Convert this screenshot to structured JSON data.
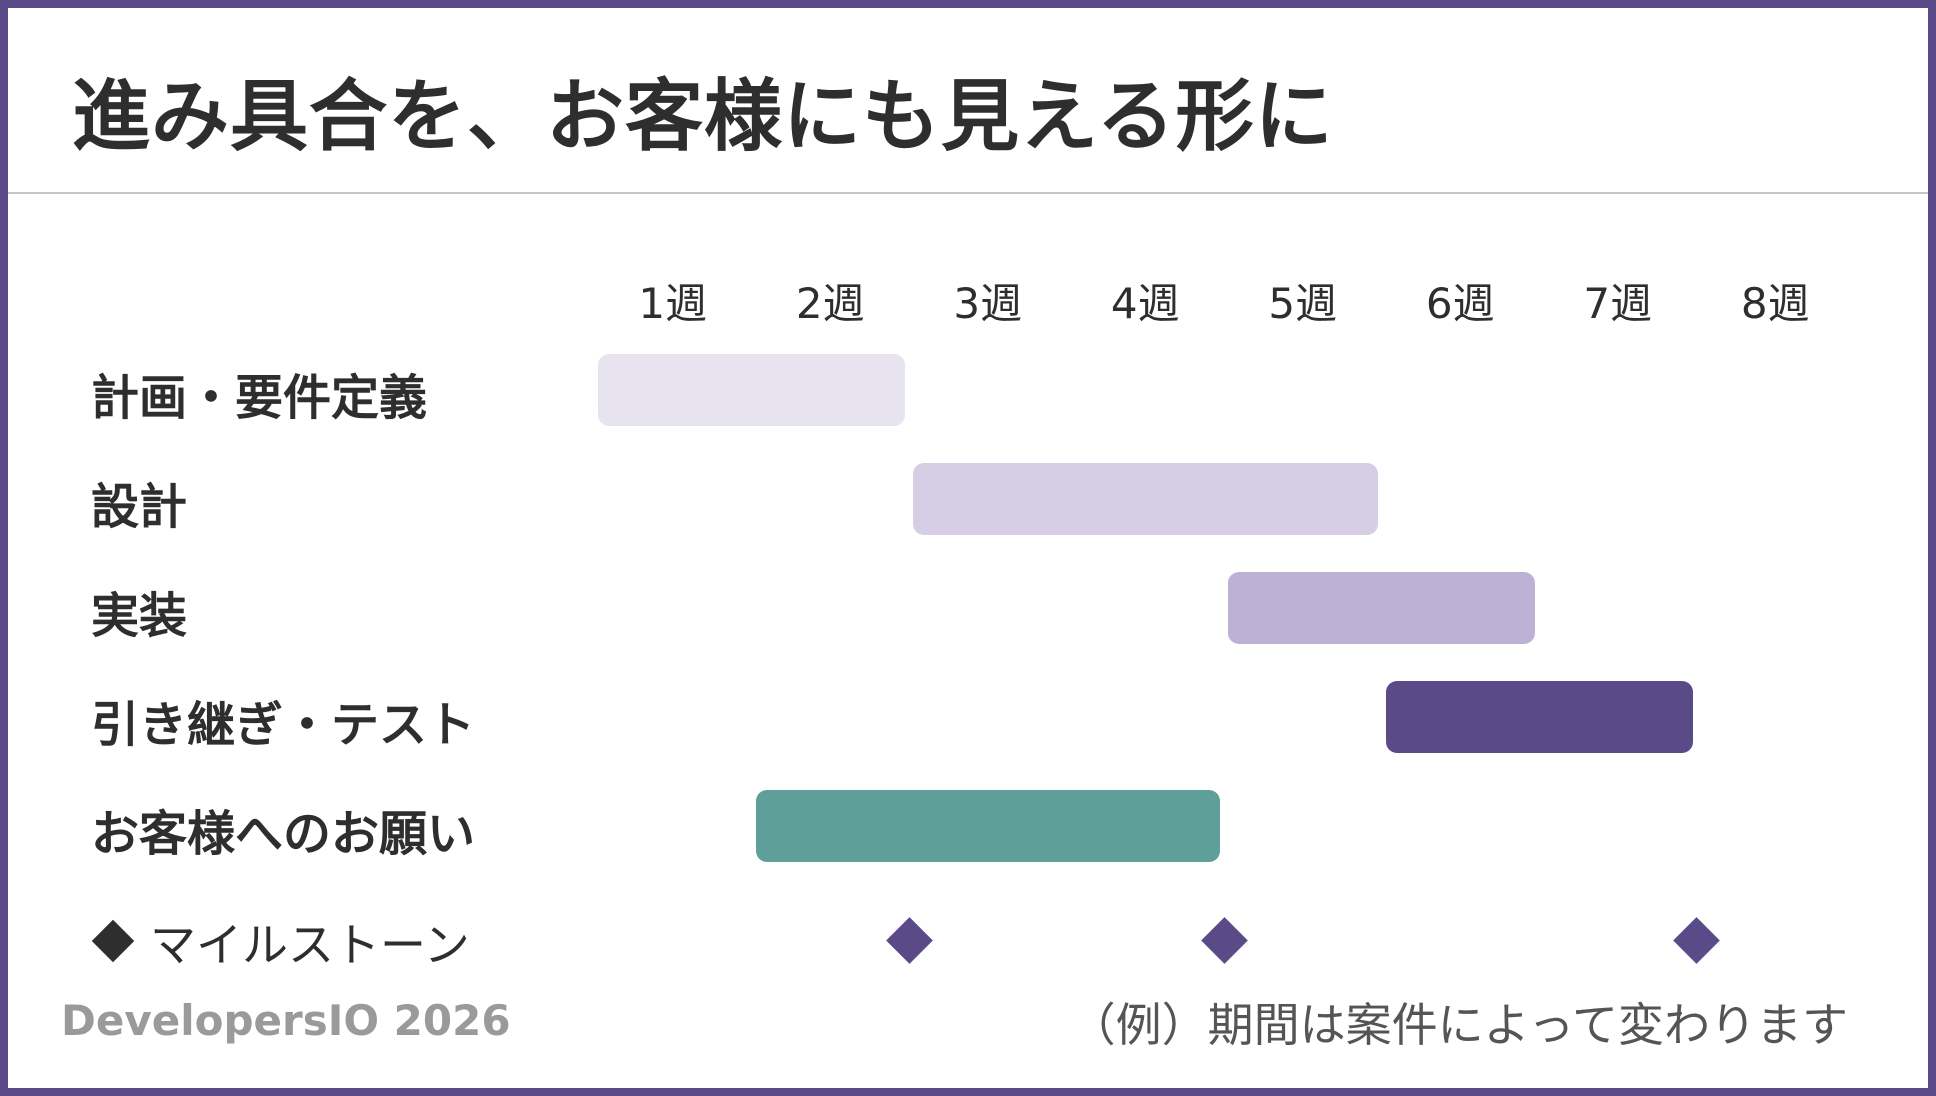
{
  "title": "進み具合を、お客様にも見える形に",
  "chart_data": {
    "type": "gantt",
    "weeks": [
      "1週",
      "2週",
      "3週",
      "4週",
      "5週",
      "6週",
      "7週",
      "8週"
    ],
    "tasks": [
      {
        "name": "計画・要件定義",
        "start_week": 1,
        "end_week": 2,
        "color": "#e7e4ef"
      },
      {
        "name": "設計",
        "start_week": 3,
        "end_week": 5,
        "color": "#d6cee5"
      },
      {
        "name": "実装",
        "start_week": 5,
        "end_week": 6,
        "color": "#bdb2d5"
      },
      {
        "name": "引き継ぎ・テスト",
        "start_week": 6,
        "end_week": 7,
        "color": "#5b4a88"
      },
      {
        "name": "お客様へのお願い",
        "start_week": 2,
        "end_week": 4,
        "color": "#5f9f9a"
      }
    ],
    "milestones": [
      2.5,
      4.5,
      7.5
    ],
    "milestone_color": "#5b4a88",
    "legend": "マイルストーン"
  },
  "footer": {
    "brand": "DevelopersIO 2026",
    "note": "（例）期間は案件によって変わります"
  }
}
